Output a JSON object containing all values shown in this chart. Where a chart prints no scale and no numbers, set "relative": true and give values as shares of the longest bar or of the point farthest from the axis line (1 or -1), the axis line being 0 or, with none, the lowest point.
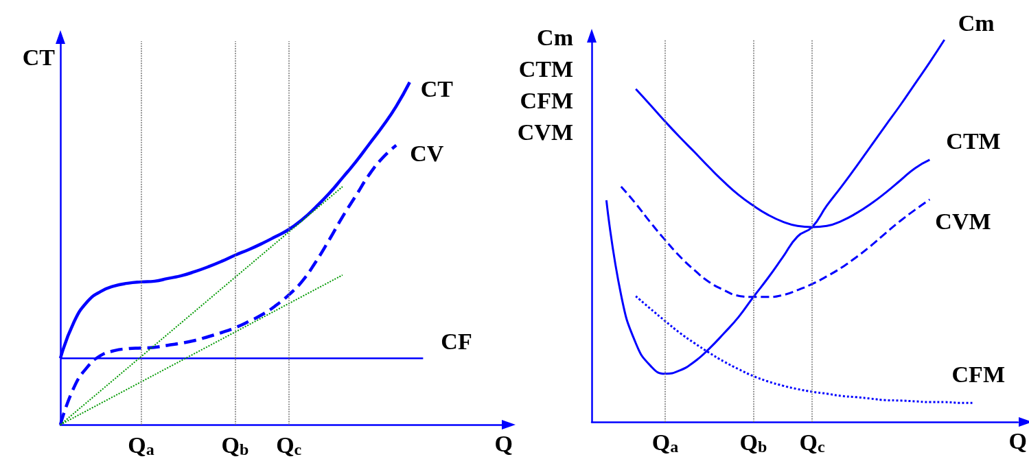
{
  "chart_data": [
    {
      "type": "line",
      "relative": true,
      "ylabel": "CT",
      "xlabel": "Q",
      "grid": false,
      "legend": false,
      "tick_labels": "x",
      "marker": "none",
      "categories": [
        null,
        null,
        null,
        null,
        null,
        null,
        "Q$_{a}$",
        null,
        null,
        null,
        null,
        null,
        null,
        "Q$_{b}$",
        null,
        null,
        null,
        "Q$_{c}$",
        null,
        null,
        null,
        null,
        null,
        null,
        null,
        null,
        null,
        null,
        null,
        null,
        null,
        null,
        null,
        null
      ],
      "series": [
        {
          "name": "CT",
          "color": "#0000ff",
          "line_style": "solid",
          "values": [
            0.194,
            0.299,
            0.359,
            0.389,
            0.405,
            0.413,
            0.417,
            0.419,
            0.427,
            0.435,
            0.447,
            0.461,
            0.477,
            0.495,
            0.511,
            0.529,
            0.549,
            0.57,
            0.599,
            0.635,
            0.675,
            0.721,
            0.768,
            0.82,
            0.872,
            0.93,
            1.0,
            null,
            null,
            null,
            null,
            null,
            null,
            null
          ]
        },
        {
          "name": "CV",
          "color": "#0000ff",
          "line_style": "dashed",
          "values": [
            0,
            0.108,
            0.168,
            0.202,
            0.216,
            0.222,
            0.224,
            0.226,
            0.232,
            0.238,
            0.246,
            0.257,
            0.269,
            0.283,
            0.301,
            0.321,
            0.347,
            0.379,
            0.419,
            0.475,
            0.539,
            0.607,
            0.669,
            0.731,
            0.78,
            0.816,
            null,
            null,
            null,
            null,
            null,
            null,
            null,
            null
          ]
        },
        {
          "name": "CF",
          "color": "#0000ff",
          "line_style": "solid",
          "values": [
            0.194,
            0.194,
            0.194,
            0.194,
            0.194,
            0.194,
            0.194,
            0.194,
            0.194,
            0.194,
            0.194,
            0.194,
            0.194,
            0.194,
            0.194,
            0.194,
            0.194,
            0.194,
            0.194,
            0.194,
            0.194,
            0.194,
            0.194,
            0.194,
            0.194,
            0.194,
            0.194,
            0.194,
            null,
            null,
            null,
            null,
            null,
            null
          ]
        },
        {
          "color": "#009900",
          "line_style": "dotted",
          "values": [
            0,
            null,
            null,
            null,
            null,
            null,
            null,
            null,
            null,
            null,
            null,
            null,
            null,
            null,
            null,
            null,
            null,
            null,
            null,
            null,
            null,
            0.695,
            null,
            null,
            null,
            null,
            null,
            null,
            null,
            null,
            null,
            null,
            null,
            null
          ]
        },
        {
          "color": "#009900",
          "line_style": "dotted",
          "values": [
            0,
            null,
            null,
            null,
            null,
            null,
            null,
            null,
            null,
            null,
            null,
            null,
            null,
            null,
            null,
            null,
            null,
            null,
            null,
            null,
            null,
            0.437,
            null,
            null,
            null,
            null,
            null,
            null,
            null,
            null,
            null,
            null,
            null,
            null
          ]
        }
      ],
      "ref_lines": [
        {
          "axis": "x",
          "value": "Q$_{a}$",
          "color": "#808080",
          "line_style": "dotted"
        },
        {
          "axis": "x",
          "value": "Q$_{b}$",
          "color": "#808080",
          "line_style": "dotted"
        },
        {
          "axis": "x",
          "value": "Q$_{c}$",
          "color": "#808080",
          "line_style": "dotted"
        }
      ]
    },
    {
      "type": "line",
      "relative": true,
      "ylabel": "Cm\nCTM\nCFM\nCVM",
      "xlabel": "Q",
      "grid": false,
      "legend": false,
      "tick_labels": "x",
      "marker": "none",
      "categories": [
        null,
        null,
        null,
        null,
        null,
        "Q$_{a}$",
        null,
        null,
        null,
        null,
        null,
        "Q$_{b}$",
        null,
        null,
        null,
        "Q$_{c}$",
        null,
        null,
        null,
        null,
        null,
        null,
        null,
        null,
        null,
        null,
        null,
        null,
        null,
        null
      ],
      "series": [
        {
          "name": "Cm",
          "color": "#0000ff",
          "line_style": "solid",
          "values": [
            null,
            0.58,
            0.332,
            0.206,
            0.147,
            0.126,
            0.135,
            0.158,
            0.192,
            0.232,
            0.275,
            0.327,
            0.377,
            0.431,
            0.485,
            0.51,
            0.566,
            0.616,
            0.668,
            0.722,
            0.776,
            0.829,
            0.885,
            0.941,
            1.0,
            null,
            null,
            null,
            null,
            null
          ]
        },
        {
          "name": "CTM",
          "color": "#0000ff",
          "line_style": "solid",
          "values": [
            null,
            null,
            null,
            0.871,
            0.829,
            0.786,
            0.745,
            0.706,
            0.666,
            0.628,
            0.594,
            0.566,
            0.542,
            0.524,
            0.513,
            0.51,
            0.513,
            0.526,
            0.546,
            0.571,
            0.6,
            0.632,
            0.664,
            0.686,
            null,
            null,
            null,
            null,
            null,
            null
          ]
        },
        {
          "name": "CVM",
          "color": "#0000ff",
          "line_style": "dashed",
          "values": [
            null,
            null,
            0.616,
            0.571,
            0.522,
            0.476,
            0.433,
            0.397,
            0.366,
            0.345,
            0.33,
            0.327,
            0.327,
            0.332,
            0.345,
            0.361,
            0.381,
            0.404,
            0.431,
            0.461,
            0.494,
            0.526,
            0.555,
            0.582,
            null,
            null,
            null,
            null,
            null,
            null
          ]
        },
        {
          "name": "CFM",
          "color": "#0000ff",
          "line_style": "dotted",
          "values": [
            null,
            null,
            null,
            0.329,
            0.296,
            0.264,
            0.233,
            0.206,
            0.181,
            0.158,
            0.138,
            0.12,
            0.106,
            0.095,
            0.086,
            0.079,
            0.074,
            0.068,
            0.065,
            0.061,
            0.057,
            0.056,
            0.054,
            0.052,
            0.052,
            0.05,
            0.05,
            null,
            null,
            null
          ]
        }
      ],
      "ref_lines": [
        {
          "axis": "x",
          "value": "Q$_{a}$",
          "color": "#808080",
          "line_style": "dotted"
        },
        {
          "axis": "x",
          "value": "Q$_{b}$",
          "color": "#808080",
          "line_style": "dotted"
        },
        {
          "axis": "x",
          "value": "Q$_{c}$",
          "color": "#808080",
          "line_style": "dotted"
        }
      ]
    }
  ]
}
